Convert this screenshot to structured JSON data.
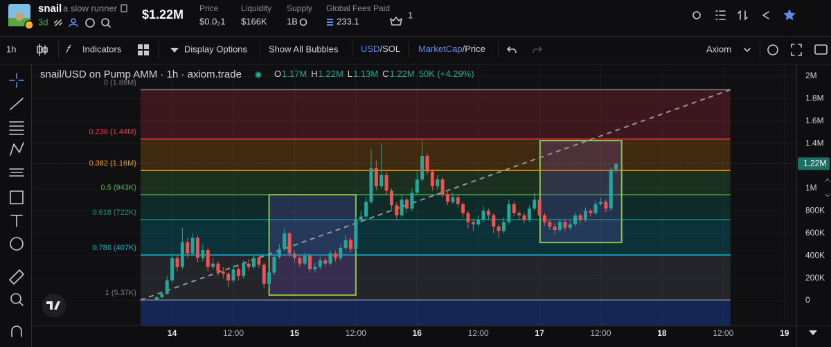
{
  "header": {
    "name": "snail",
    "tagline": "a slow runner",
    "age": "3d",
    "market_cap": "$1.22M",
    "stats": [
      {
        "label": "Price",
        "value": "$0.0₂1"
      },
      {
        "label": "Liquidity",
        "value": "$166K"
      },
      {
        "label": "Supply",
        "value": "1B"
      },
      {
        "label": "Global Fees Paid",
        "value": "233.1"
      }
    ],
    "holders": "1"
  },
  "toolbar": {
    "interval": "1h",
    "indicators": "Indicators",
    "display": "Display Options",
    "bubbles": "Show All Bubbles",
    "currency": [
      "USD",
      "/SOL"
    ],
    "mode": [
      "MarketCap",
      "/Price"
    ],
    "provider": "Axiom"
  },
  "chart_data": {
    "type": "candlestick",
    "legend_values": [
      {
        "key": "O",
        "label": "1.17M"
      },
      {
        "key": "H",
        "label": "1.22M"
      },
      {
        "key": "L",
        "label": "1.13M"
      },
      {
        "key": "C",
        "label": "1.22M"
      }
    ],
    "change": "50K (+4.29%)",
    "up_color": "#26a69a",
    "down_color": "#ef5350",
    "x": [
      -3,
      -2,
      -1,
      0,
      1,
      2,
      3,
      4,
      5,
      6,
      7,
      8,
      9,
      10,
      11,
      12,
      13,
      14,
      15,
      16,
      17,
      18,
      19,
      20,
      21,
      22,
      23,
      24,
      25,
      26,
      27,
      28,
      29,
      30,
      31,
      32,
      33,
      34,
      35,
      36,
      37,
      38,
      39,
      40,
      41,
      42,
      43,
      44,
      45,
      46,
      47,
      48,
      49,
      50,
      51,
      52,
      53,
      54,
      55,
      56,
      57,
      58,
      59,
      60,
      61,
      62,
      63,
      64,
      65,
      66,
      67,
      68,
      69,
      70,
      71,
      72,
      73,
      74,
      75,
      76,
      77,
      78,
      79,
      80,
      81,
      82,
      83,
      84,
      85,
      86,
      87
    ],
    "series": [
      {
        "name": "snail/USD on Pump AMM · 1h · axiom.trade",
        "open": [
          10000,
          30000,
          60000,
          180000,
          380000,
          300000,
          520000,
          420000,
          560000,
          380000,
          450000,
          300000,
          330000,
          260000,
          240000,
          180000,
          280000,
          220000,
          330000,
          300000,
          380000,
          320000,
          150000,
          250000,
          390000,
          460000,
          600000,
          420000,
          380000,
          330000,
          400000,
          280000,
          300000,
          360000,
          330000,
          420000,
          380000,
          470000,
          540000,
          460000,
          720000,
          750000,
          880000,
          1180000,
          1020000,
          1120000,
          980000,
          850000,
          760000,
          900000,
          820000,
          960000,
          1080000,
          1290000,
          1150000,
          1020000,
          1080000,
          950000,
          880000,
          920000,
          860000,
          780000,
          700000,
          680000,
          720000,
          800000,
          760000,
          660000,
          620000,
          700000,
          860000,
          780000,
          760000,
          720000,
          820000,
          900000,
          760000,
          700000,
          660000,
          630000,
          700000,
          650000,
          680000,
          760000,
          720000,
          800000,
          780000,
          860000,
          880000,
          820000,
          1170000
        ],
        "high": [
          40000,
          80000,
          220000,
          420000,
          400000,
          650000,
          560000,
          600000,
          580000,
          500000,
          470000,
          380000,
          350000,
          300000,
          260000,
          320000,
          300000,
          360000,
          370000,
          410000,
          400000,
          340000,
          280000,
          420000,
          500000,
          640000,
          620000,
          450000,
          400000,
          430000,
          420000,
          340000,
          390000,
          380000,
          450000,
          440000,
          500000,
          580000,
          560000,
          760000,
          800000,
          920000,
          1350000,
          1250000,
          1400000,
          1150000,
          1000000,
          880000,
          940000,
          920000,
          1000000,
          1150000,
          1430000,
          1310000,
          1170000,
          1120000,
          1100000,
          970000,
          960000,
          940000,
          880000,
          800000,
          730000,
          760000,
          840000,
          820000,
          780000,
          680000,
          740000,
          900000,
          880000,
          800000,
          780000,
          850000,
          960000,
          910000,
          780000,
          720000,
          690000,
          730000,
          720000,
          710000,
          790000,
          780000,
          830000,
          820000,
          890000,
          920000,
          900000,
          1190000,
          1220000
        ],
        "low": [
          5000,
          20000,
          50000,
          160000,
          260000,
          280000,
          380000,
          400000,
          340000,
          350000,
          260000,
          280000,
          220000,
          200000,
          120000,
          160000,
          180000,
          200000,
          270000,
          280000,
          290000,
          110000,
          120000,
          230000,
          370000,
          440000,
          390000,
          340000,
          300000,
          310000,
          250000,
          250000,
          280000,
          300000,
          310000,
          350000,
          360000,
          450000,
          430000,
          440000,
          700000,
          730000,
          860000,
          980000,
          1000000,
          940000,
          800000,
          720000,
          740000,
          780000,
          800000,
          940000,
          1060000,
          1120000,
          980000,
          990000,
          920000,
          850000,
          860000,
          830000,
          740000,
          640000,
          620000,
          660000,
          700000,
          720000,
          600000,
          560000,
          600000,
          680000,
          750000,
          720000,
          690000,
          700000,
          800000,
          730000,
          670000,
          630000,
          590000,
          610000,
          620000,
          630000,
          660000,
          690000,
          700000,
          750000,
          760000,
          840000,
          790000,
          800000,
          1130000
        ],
        "close": [
          30000,
          60000,
          180000,
          380000,
          300000,
          520000,
          420000,
          560000,
          380000,
          450000,
          300000,
          330000,
          260000,
          240000,
          180000,
          280000,
          220000,
          330000,
          300000,
          380000,
          320000,
          150000,
          250000,
          390000,
          460000,
          600000,
          420000,
          380000,
          330000,
          400000,
          280000,
          300000,
          360000,
          330000,
          420000,
          380000,
          470000,
          540000,
          460000,
          720000,
          750000,
          880000,
          1180000,
          1020000,
          1120000,
          980000,
          850000,
          760000,
          900000,
          820000,
          960000,
          1080000,
          1290000,
          1150000,
          1020000,
          1080000,
          950000,
          880000,
          920000,
          860000,
          780000,
          700000,
          680000,
          720000,
          800000,
          760000,
          660000,
          620000,
          700000,
          860000,
          780000,
          760000,
          720000,
          820000,
          900000,
          760000,
          700000,
          660000,
          630000,
          700000,
          650000,
          680000,
          760000,
          720000,
          800000,
          780000,
          860000,
          880000,
          820000,
          1170000,
          1220000
        ]
      }
    ],
    "xlim": [
      -27.5,
      122.34
    ],
    "xticks": [
      {
        "value": 0,
        "label": "14"
      },
      {
        "value": 12,
        "label": "12:00"
      },
      {
        "value": 24,
        "label": "15"
      },
      {
        "value": 36,
        "label": "12:00"
      },
      {
        "value": 48,
        "label": "16"
      },
      {
        "value": 60,
        "label": "12:00"
      },
      {
        "value": 72,
        "label": "17"
      },
      {
        "value": 84,
        "label": "12:00"
      },
      {
        "value": 96,
        "label": "18"
      },
      {
        "value": 108,
        "label": "12:00"
      },
      {
        "value": 120,
        "label": "19"
      }
    ],
    "ylim": [
      -222000,
      2093000
    ],
    "yticks": [
      {
        "value": 2000000,
        "label": "2M"
      },
      {
        "value": 1800000,
        "label": "1.8M"
      },
      {
        "value": 1600000,
        "label": "1.6M"
      },
      {
        "value": 1400000,
        "label": "1.4M"
      },
      {
        "value": 1000000,
        "label": "1M"
      },
      {
        "value": 800000,
        "label": "800K"
      },
      {
        "value": 600000,
        "label": "600K"
      },
      {
        "value": 400000,
        "label": "400K"
      },
      {
        "value": 200000,
        "label": "200K"
      },
      0
    ],
    "grid": true,
    "last_price": {
      "value": 1220000,
      "label": "1.22M",
      "color": "#1e7066"
    },
    "fib": {
      "x": [
        -6.2,
        109.4
      ],
      "extend_color": "#2962ff",
      "levels": [
        {
          "label": "0 (1.88M)",
          "value": 1880000,
          "color": "#787b86"
        },
        {
          "label": "0.236 (1.44M)",
          "value": 1440000,
          "color": "#f23645"
        },
        {
          "label": "0.382 (1.16M)",
          "value": 1160000,
          "color": "#ff9800"
        },
        {
          "label": "0.5 (943K)",
          "value": 943000,
          "color": "#4caf50"
        },
        {
          "label": "0.618 (722K)",
          "value": 722000,
          "color": "#089981"
        },
        {
          "label": "0.786 (407K)",
          "value": 407000,
          "color": "#00bcd4"
        },
        {
          "label": "1 (5.37K)",
          "value": 5370,
          "color": "#787b86"
        }
      ]
    },
    "trend_line": {
      "x": [
        -6.2,
        109.4
      ],
      "values": [
        5370,
        1880000
      ],
      "color": "#9598a1"
    },
    "boxes": [
      {
        "x": [
          19,
          36
        ],
        "values": [
          944000,
          49000
        ],
        "color": "#8bc34a"
      },
      {
        "x": [
          72.1,
          88.1
        ],
        "values": [
          1426000,
          518000
        ],
        "color": "#8bc34a"
      }
    ]
  }
}
